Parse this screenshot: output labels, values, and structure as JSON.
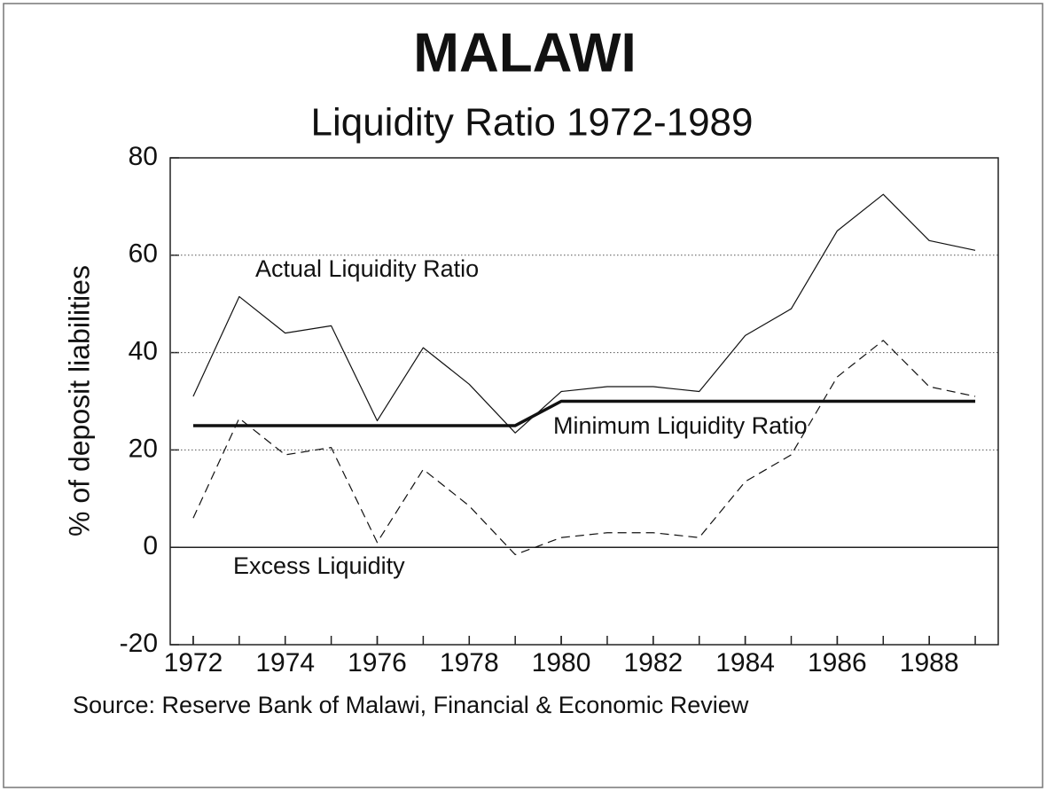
{
  "chart_data": {
    "type": "line",
    "title": "MALAWI",
    "subtitle": "Liquidity Ratio 1972-1989",
    "y_label": "% of deposit liabilities",
    "source": "Source: Reserve Bank of Malawi, Financial & Economic Review",
    "x": [
      1972,
      1973,
      1974,
      1975,
      1976,
      1977,
      1978,
      1979,
      1980,
      1981,
      1982,
      1983,
      1984,
      1985,
      1986,
      1987,
      1988,
      1989
    ],
    "series": [
      {
        "name": "Actual Liquidity Ratio",
        "color": "#111111",
        "style": "thin",
        "values": [
          31,
          51.5,
          44,
          45.5,
          26,
          41,
          33.5,
          23.5,
          32,
          33,
          33,
          32,
          43.5,
          49,
          65,
          72.5,
          63,
          61
        ]
      },
      {
        "name": "Minimum Liquidity Ratio",
        "color": "#111111",
        "style": "thick",
        "values": [
          25,
          25,
          25,
          25,
          25,
          25,
          25,
          25,
          30,
          30,
          30,
          30,
          30,
          30,
          30,
          30,
          30,
          30
        ]
      },
      {
        "name": "Excess Liquidity",
        "color": "#111111",
        "style": "dashed",
        "values": [
          6,
          26.5,
          19,
          20.5,
          1,
          16,
          8.5,
          -1.5,
          2,
          3,
          3,
          2,
          13.5,
          19,
          35,
          42.5,
          33,
          31
        ]
      }
    ],
    "xlim": [
      1971.5,
      1989.5
    ],
    "xticks": [
      1972,
      1974,
      1976,
      1978,
      1980,
      1982,
      1984,
      1986,
      1988
    ],
    "ylim": [
      -20,
      80
    ],
    "yticks": [
      -20,
      0,
      20,
      40,
      60,
      80
    ],
    "grid": true
  }
}
